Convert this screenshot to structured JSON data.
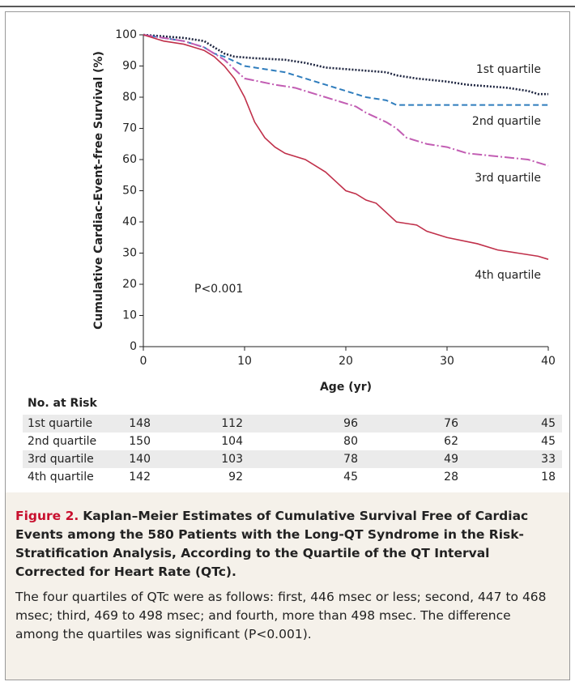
{
  "chart_data": {
    "type": "line",
    "ylabel": "Cumulative Cardiac-Event–free Survival (%)",
    "xlabel": "Age (yr)",
    "annotation": "P<0.001",
    "xlim": [
      0,
      40
    ],
    "xticks": [
      0,
      10,
      20,
      30,
      40
    ],
    "ylim": [
      0,
      100
    ],
    "yticks": [
      0,
      10,
      20,
      30,
      40,
      50,
      60,
      70,
      80,
      90,
      100
    ],
    "series": [
      {
        "name": "1st quartile",
        "color": "#1e2540",
        "x": [
          0,
          2,
          4,
          6,
          7,
          8,
          9,
          11,
          14,
          16,
          18,
          20,
          24,
          25,
          27,
          30,
          32,
          36,
          38,
          39,
          40
        ],
        "values": [
          100,
          99.5,
          99,
          98,
          96,
          94,
          93,
          92.5,
          92,
          91,
          89.5,
          89,
          88,
          87,
          86,
          85,
          84,
          83,
          82,
          81,
          81
        ]
      },
      {
        "name": "2nd quartile",
        "color": "#2f7dbd",
        "x": [
          0,
          2,
          4,
          6,
          7,
          8,
          10,
          12,
          14,
          16,
          18,
          20,
          22,
          24,
          25,
          40
        ],
        "values": [
          100,
          99,
          98,
          96,
          94,
          93,
          90,
          89,
          88,
          86,
          84,
          82,
          80,
          79,
          77.5,
          77.5
        ]
      },
      {
        "name": "3rd quartile",
        "color": "#c25db3",
        "x": [
          0,
          2,
          4,
          6,
          7,
          8,
          9,
          10,
          13,
          15,
          17,
          19,
          21,
          22,
          24,
          25,
          26,
          28,
          30,
          32,
          35,
          38,
          40
        ],
        "values": [
          100,
          99,
          98,
          96,
          94,
          92,
          89,
          86,
          84,
          83,
          81,
          79,
          77,
          75,
          72,
          70,
          67,
          65,
          64,
          62,
          61,
          60,
          58
        ]
      },
      {
        "name": "4th quartile",
        "color": "#c0304a",
        "x": [
          0,
          1,
          2,
          4,
          5,
          6,
          7,
          8,
          9,
          10,
          11,
          12,
          13,
          14,
          16,
          17,
          18,
          19,
          20,
          21,
          22,
          23,
          24,
          25,
          27,
          28,
          29,
          30,
          33,
          35,
          37,
          39,
          40
        ],
        "values": [
          100,
          99,
          98,
          97,
          96,
          95,
          93,
          90,
          86,
          80,
          72,
          67,
          64,
          62,
          60,
          58,
          56,
          53,
          50,
          49,
          47,
          46,
          43,
          40,
          39,
          37,
          36,
          35,
          33,
          31,
          30,
          29,
          28
        ]
      }
    ]
  },
  "table": {
    "title": "No. at Risk",
    "rows": [
      [
        "1st quartile",
        148,
        112,
        96,
        76,
        45
      ],
      [
        "2nd quartile",
        150,
        104,
        80,
        62,
        45
      ],
      [
        "3rd quartile",
        140,
        103,
        78,
        49,
        33
      ],
      [
        "4th quartile",
        142,
        92,
        45,
        28,
        18
      ]
    ]
  },
  "caption": {
    "label": "Figure 2.",
    "title": "Kaplan–Meier Estimates of Cumulative Survival Free of Cardiac Events among the 580 Patients with the Long-QT Syndrome in the Risk-Stratification Analysis, According to the Quartile of the QT Interval Corrected for Heart Rate (QTc).",
    "body": "The four quartiles of QTc were as follows: first, 446 msec or less; second, 447 to 468 msec; third, 469 to 498 msec; and fourth, more than 498 msec. The difference among the quartiles was significant (P<0.001)."
  }
}
